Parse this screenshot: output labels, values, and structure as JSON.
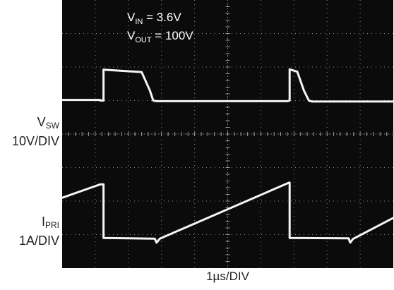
{
  "chart_data": {
    "type": "line",
    "title": "",
    "annotations": [
      {
        "name": "V",
        "sub": "IN",
        "rest": " = 3.6V"
      },
      {
        "name": "V",
        "sub": "OUT",
        "rest": " = 100V"
      }
    ],
    "xlabel": "1µs/DIV",
    "grid": true,
    "grid_divisions": {
      "x": 10,
      "y": 8
    },
    "xlim": [
      0,
      10
    ],
    "ylim": [
      0,
      8
    ],
    "series": [
      {
        "name": "VSW",
        "label_main": "V",
        "label_sub": "SW",
        "label_scale": "10V/DIV",
        "points": [
          [
            0.0,
            5.02
          ],
          [
            1.15,
            5.02
          ],
          [
            1.15,
            5.0
          ],
          [
            1.25,
            5.0
          ],
          [
            1.25,
            5.92
          ],
          [
            2.4,
            5.85
          ],
          [
            2.65,
            5.3
          ],
          [
            2.75,
            5.0
          ],
          [
            2.85,
            4.98
          ],
          [
            6.8,
            4.98
          ],
          [
            6.87,
            5.0
          ],
          [
            6.87,
            5.93
          ],
          [
            7.1,
            5.86
          ],
          [
            7.3,
            5.3
          ],
          [
            7.45,
            5.0
          ],
          [
            7.55,
            4.97
          ],
          [
            10.0,
            4.97
          ]
        ]
      },
      {
        "name": "IPRI",
        "label_main": "I",
        "label_sub": "PRI",
        "label_scale": "1A/DIV",
        "points": [
          [
            0.0,
            2.1
          ],
          [
            1.15,
            2.5
          ],
          [
            1.15,
            2.5
          ],
          [
            1.25,
            2.5
          ],
          [
            1.25,
            0.9
          ],
          [
            2.8,
            0.88
          ],
          [
            2.85,
            0.76
          ],
          [
            2.95,
            0.88
          ],
          [
            6.85,
            2.55
          ],
          [
            6.87,
            2.55
          ],
          [
            6.87,
            0.9
          ],
          [
            8.65,
            0.89
          ],
          [
            8.7,
            0.76
          ],
          [
            8.78,
            0.87
          ],
          [
            10.0,
            1.5
          ]
        ]
      }
    ]
  }
}
